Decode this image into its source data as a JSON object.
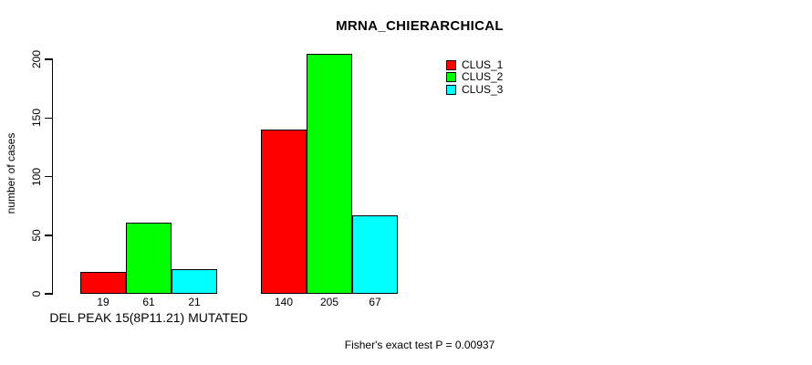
{
  "figure": {
    "background": "#ffffff",
    "foreground": "#000000"
  },
  "chart_data": {
    "type": "bar",
    "title": "MRNA_CHIERARCHICAL",
    "ylabel": "number of cases",
    "xlabel": "DEL PEAK 15(8P11.21) MUTATED",
    "ylim": [
      0,
      200
    ],
    "yticks": [
      0,
      50,
      100,
      150,
      200
    ],
    "grid": false,
    "bar_borders": true,
    "show_bar_value_labels": true,
    "categories": [
      "DEL PEAK 15(8P11.21) MUTATED",
      ""
    ],
    "series": [
      {
        "name": "CLUS_1",
        "color": "#ff0000",
        "values": [
          19,
          140
        ]
      },
      {
        "name": "CLUS_2",
        "color": "#00ff00",
        "values": [
          61,
          205
        ]
      },
      {
        "name": "CLUS_3",
        "color": "#00ffff",
        "values": [
          21,
          67
        ]
      }
    ],
    "legend": {
      "position": "top-right",
      "entries": [
        "CLUS_1",
        "CLUS_2",
        "CLUS_3"
      ]
    },
    "annotation": "Fisher's exact test P = 0.00937"
  }
}
